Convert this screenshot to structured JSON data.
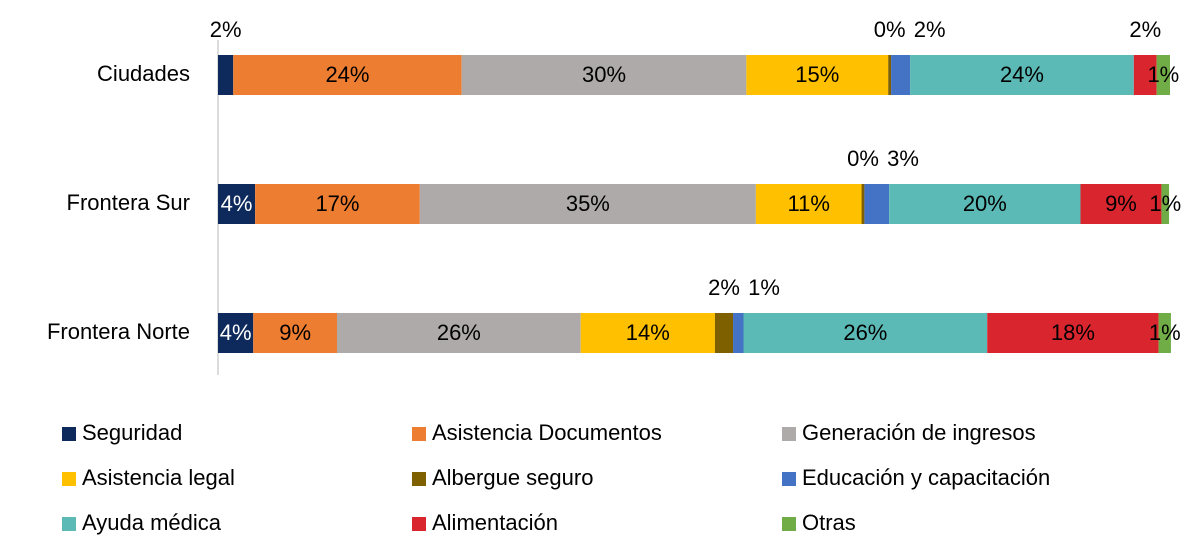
{
  "chart_data": {
    "type": "stacked_barh",
    "categories": [
      "Ciudades",
      "Frontera Sur",
      "Frontera Norte"
    ],
    "xlim": [
      0,
      100
    ],
    "series": [
      {
        "name": "Seguridad",
        "color": "#0e2a5c",
        "values": [
          1.6,
          3.9,
          3.7
        ],
        "value_labels": [
          "2%",
          "4%",
          "4%"
        ]
      },
      {
        "name": "Asistencia Documentos",
        "color": "#ed7d31",
        "values": [
          24.0,
          17.3,
          8.8
        ],
        "value_labels": [
          "24%",
          "17%",
          "9%"
        ]
      },
      {
        "name": "Generación de ingresos",
        "color": "#aeaaaa",
        "values": [
          29.9,
          35.3,
          25.6
        ],
        "value_labels": [
          "30%",
          "35%",
          "26%"
        ]
      },
      {
        "name": "Asistencia legal",
        "color": "#ffc000",
        "values": [
          14.9,
          11.1,
          14.1
        ],
        "value_labels": [
          "15%",
          "11%",
          "14%"
        ]
      },
      {
        "name": "Albergue seguro",
        "color": "#7f6000",
        "values": [
          0.3,
          0.3,
          1.9
        ],
        "value_labels": [
          "0%",
          "0%",
          "2%"
        ]
      },
      {
        "name": "Educación y capacitación",
        "color": "#4472c4",
        "values": [
          2.0,
          2.6,
          1.1
        ],
        "value_labels": [
          "2%",
          "3%",
          "1%"
        ]
      },
      {
        "name": "Ayuda médica",
        "color": "#5bbab5",
        "values": [
          23.5,
          20.1,
          25.6
        ],
        "value_labels": [
          "24%",
          "20%",
          "26%"
        ]
      },
      {
        "name": "Alimentación",
        "color": "#d9262e",
        "values": [
          2.4,
          8.5,
          18.0
        ],
        "value_labels": [
          "2%",
          "9%",
          "18%"
        ]
      },
      {
        "name": "Otras",
        "color": "#70ad47",
        "values": [
          1.4,
          0.8,
          1.3
        ],
        "value_labels": [
          "1%",
          "1%",
          "1%"
        ]
      }
    ]
  }
}
